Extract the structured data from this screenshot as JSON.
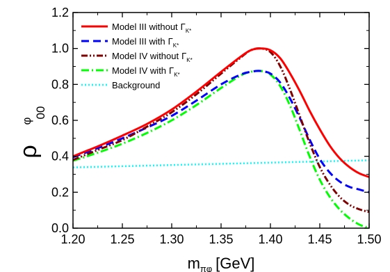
{
  "chart_data": {
    "type": "line",
    "xlabel": {
      "main": "m",
      "sub": "πφ",
      "unit": "[GeV]"
    },
    "ylabel": {
      "main": "ρ",
      "sup": "φ",
      "sub": "00"
    },
    "xlim": [
      1.2,
      1.5
    ],
    "ylim": [
      0.0,
      1.2
    ],
    "xticks": [
      "1.20",
      "1.25",
      "1.30",
      "1.35",
      "1.40",
      "1.45",
      "1.50"
    ],
    "yticks": [
      "0.0",
      "0.2",
      "0.4",
      "0.6",
      "0.8",
      "1.0",
      "1.2"
    ],
    "legend_position": "top-left",
    "grid": false,
    "legend_symbol": "Γ",
    "legend_symbol_sub": "K*",
    "series": [
      {
        "name": "Model III without",
        "color": "#ff0000",
        "dash": "solid",
        "x": [
          1.2,
          1.225,
          1.25,
          1.275,
          1.3,
          1.325,
          1.35,
          1.37,
          1.38,
          1.39,
          1.4,
          1.41,
          1.42,
          1.43,
          1.44,
          1.45,
          1.46,
          1.47,
          1.48,
          1.49,
          1.5
        ],
        "y": [
          0.4,
          0.455,
          0.515,
          0.58,
          0.66,
          0.76,
          0.87,
          0.955,
          0.99,
          1.0,
          0.99,
          0.945,
          0.86,
          0.76,
          0.65,
          0.55,
          0.46,
          0.39,
          0.34,
          0.305,
          0.285
        ]
      },
      {
        "name": "Model III with",
        "color": "#0000ff",
        "dash": "dashed",
        "x": [
          1.2,
          1.225,
          1.25,
          1.275,
          1.3,
          1.325,
          1.35,
          1.37,
          1.38,
          1.39,
          1.4,
          1.41,
          1.42,
          1.43,
          1.44,
          1.45,
          1.46,
          1.47,
          1.48,
          1.49,
          1.5
        ],
        "y": [
          0.395,
          0.445,
          0.5,
          0.56,
          0.625,
          0.71,
          0.8,
          0.855,
          0.87,
          0.875,
          0.86,
          0.81,
          0.72,
          0.61,
          0.49,
          0.385,
          0.31,
          0.26,
          0.23,
          0.215,
          0.2
        ]
      },
      {
        "name": "Model IV without",
        "color": "#800000",
        "dash": "dash-dot-dot",
        "x": [
          1.2,
          1.225,
          1.25,
          1.275,
          1.3,
          1.325,
          1.35,
          1.37,
          1.38,
          1.39,
          1.4,
          1.41,
          1.42,
          1.43,
          1.44,
          1.45,
          1.46,
          1.47,
          1.48,
          1.49,
          1.5
        ],
        "y": [
          0.38,
          0.435,
          0.49,
          0.565,
          0.645,
          0.745,
          0.86,
          0.95,
          0.99,
          1.0,
          0.98,
          0.9,
          0.77,
          0.62,
          0.47,
          0.34,
          0.245,
          0.175,
          0.13,
          0.105,
          0.09
        ]
      },
      {
        "name": "Model IV with",
        "color": "#00ff00",
        "dash": "dash-dot",
        "x": [
          1.2,
          1.225,
          1.25,
          1.275,
          1.3,
          1.325,
          1.35,
          1.37,
          1.38,
          1.39,
          1.4,
          1.41,
          1.42,
          1.43,
          1.44,
          1.45,
          1.46,
          1.47,
          1.48,
          1.49,
          1.5
        ],
        "y": [
          0.375,
          0.42,
          0.47,
          0.53,
          0.6,
          0.685,
          0.78,
          0.85,
          0.87,
          0.875,
          0.855,
          0.79,
          0.68,
          0.54,
          0.395,
          0.27,
          0.175,
          0.105,
          0.055,
          0.02,
          0.0
        ]
      },
      {
        "name": "Background",
        "color": "#00ffff",
        "dash": "dotted",
        "x": [
          1.2,
          1.5
        ],
        "y": [
          0.338,
          0.378
        ]
      }
    ]
  }
}
